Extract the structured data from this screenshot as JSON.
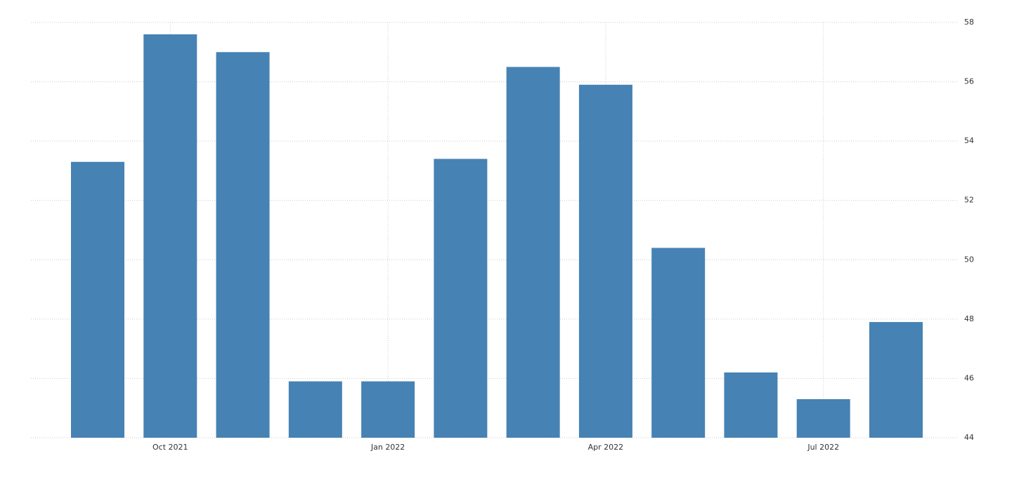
{
  "chart_data": {
    "type": "bar",
    "categories": [
      null,
      "Oct 2021",
      null,
      null,
      "Jan 2022",
      null,
      null,
      "Apr 2022",
      null,
      null,
      "Jul 2022",
      null
    ],
    "values": [
      53.3,
      57.6,
      57.0,
      45.9,
      45.9,
      53.4,
      56.5,
      55.9,
      50.4,
      46.2,
      45.3,
      47.9
    ],
    "color": "#4682b4",
    "ylim": [
      44,
      58
    ],
    "yticks": [
      44,
      46,
      48,
      50,
      52,
      54,
      56,
      58
    ],
    "grid": true
  }
}
